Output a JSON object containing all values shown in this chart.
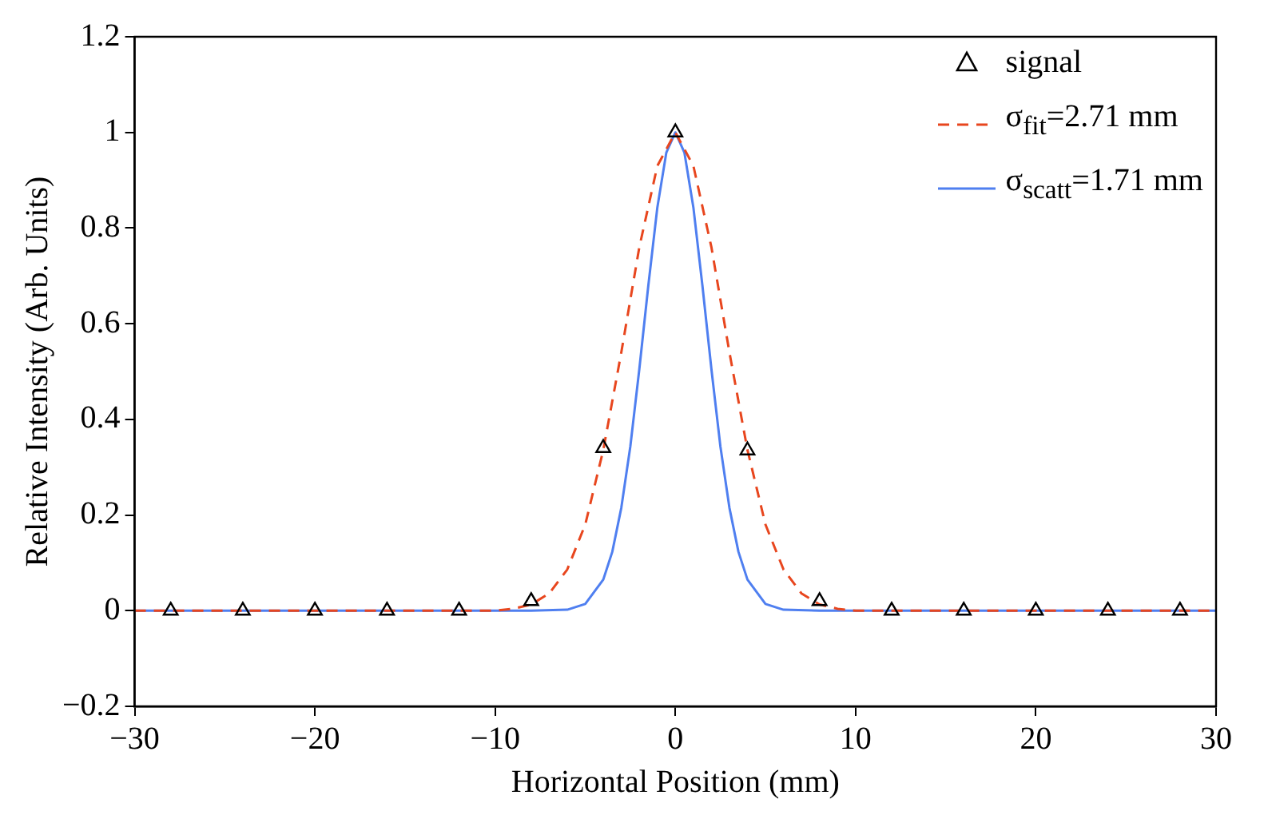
{
  "chart_data": {
    "type": "scatter",
    "xlabel": "Horizontal Position (mm)",
    "ylabel": "Relative Intensity (Arb. Units)",
    "xlim": [
      -30,
      30
    ],
    "xticks": [
      {
        "value": -30,
        "label": "−30"
      },
      {
        "value": -20,
        "label": "−20"
      },
      {
        "value": -10,
        "label": "−10"
      },
      0,
      10,
      20,
      30
    ],
    "ylim": [
      -0.2,
      1.2
    ],
    "yticks": [
      {
        "value": -0.2,
        "label": "−0.2"
      },
      0,
      0.2,
      0.4,
      0.6,
      0.8,
      1,
      1.2
    ],
    "grid": false,
    "legend": "top right",
    "series": [
      {
        "name": "signal",
        "marker": "triangle",
        "color": "#000000",
        "x": [
          -28,
          -24,
          -20,
          -16,
          -12,
          -8,
          -4,
          0,
          4,
          8,
          12,
          16,
          20,
          24,
          28
        ],
        "values": [
          0,
          0,
          0,
          0,
          0,
          0.02,
          0.34,
          1,
          0.335,
          0.02,
          0,
          0,
          0,
          0,
          0
        ]
      },
      {
        "name": "σ$_{fit}$=2.71 mm",
        "type": "line",
        "marker": "none",
        "line_style": "dashed",
        "color": "#e8461e",
        "x": [
          -30,
          -12,
          -10,
          -9,
          -8,
          -7,
          -6,
          -5,
          -4,
          -3,
          -2,
          -1,
          0,
          1,
          2,
          3,
          4,
          5,
          6,
          7,
          8,
          9,
          10,
          12,
          30
        ],
        "values": [
          0,
          0,
          0,
          0.004,
          0.013,
          0.036,
          0.086,
          0.18,
          0.336,
          0.54,
          0.76,
          0.93,
          1,
          0.93,
          0.76,
          0.54,
          0.336,
          0.18,
          0.086,
          0.036,
          0.013,
          0.004,
          0,
          0,
          0
        ]
      },
      {
        "name": "σ$_{scatt}$=1.71 mm",
        "type": "line",
        "marker": "none",
        "line_style": "solid",
        "color": "#4f7ff0",
        "x": [
          -30,
          -8,
          -6,
          -5,
          -4,
          -3.5,
          -3,
          -2.5,
          -2,
          -1.5,
          -1,
          -0.5,
          0,
          0.5,
          1,
          1.5,
          2,
          2.5,
          3,
          3.5,
          4,
          5,
          6,
          8,
          30
        ],
        "values": [
          0,
          0,
          0.002,
          0.014,
          0.065,
          0.123,
          0.215,
          0.343,
          0.505,
          0.68,
          0.843,
          0.958,
          1,
          0.958,
          0.843,
          0.68,
          0.505,
          0.343,
          0.215,
          0.123,
          0.065,
          0.014,
          0.002,
          0,
          0
        ]
      }
    ]
  }
}
